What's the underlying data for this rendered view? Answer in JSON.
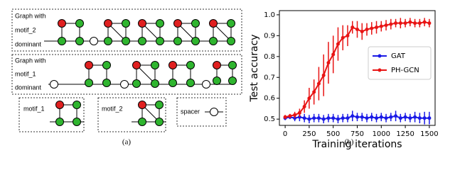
{
  "diagram": {
    "graph_motif_2": {
      "lines": [
        "Graph with",
        "motif_2",
        "dominant"
      ]
    },
    "graph_motif_1": {
      "lines": [
        "Graph with",
        "motif_1",
        "dominant"
      ]
    },
    "legend_boxes": [
      "motif_1",
      "motif_2",
      "spacer"
    ],
    "caption": "(a)"
  },
  "chart_caption": "(b)",
  "chart_data": {
    "type": "line",
    "xlabel": "Training iterations",
    "ylabel": "Test accuracy",
    "x": [
      0,
      50,
      100,
      150,
      200,
      250,
      300,
      350,
      400,
      450,
      500,
      550,
      600,
      650,
      700,
      750,
      800,
      850,
      900,
      950,
      1000,
      1050,
      1100,
      1150,
      1200,
      1250,
      1300,
      1350,
      1400,
      1450,
      1500
    ],
    "series": [
      {
        "name": "GAT",
        "color": "#1a1ae6",
        "values": [
          0.505,
          0.51,
          0.505,
          0.51,
          0.505,
          0.5,
          0.505,
          0.505,
          0.5,
          0.505,
          0.505,
          0.5,
          0.505,
          0.505,
          0.515,
          0.51,
          0.51,
          0.505,
          0.51,
          0.505,
          0.51,
          0.505,
          0.51,
          0.515,
          0.505,
          0.51,
          0.505,
          0.51,
          0.505,
          0.505,
          0.505
        ],
        "errors": [
          0.01,
          0.01,
          0.015,
          0.02,
          0.02,
          0.02,
          0.02,
          0.02,
          0.02,
          0.02,
          0.02,
          0.02,
          0.02,
          0.02,
          0.025,
          0.02,
          0.02,
          0.02,
          0.02,
          0.02,
          0.02,
          0.02,
          0.02,
          0.025,
          0.02,
          0.02,
          0.02,
          0.025,
          0.025,
          0.03,
          0.03
        ]
      },
      {
        "name": "PH-GCN",
        "color": "#e81414",
        "values": [
          0.51,
          0.515,
          0.52,
          0.53,
          0.56,
          0.6,
          0.63,
          0.67,
          0.71,
          0.77,
          0.81,
          0.86,
          0.89,
          0.9,
          0.94,
          0.93,
          0.92,
          0.93,
          0.935,
          0.94,
          0.945,
          0.95,
          0.955,
          0.96,
          0.96,
          0.96,
          0.965,
          0.96,
          0.96,
          0.965,
          0.96
        ],
        "errors": [
          0.01,
          0.01,
          0.015,
          0.02,
          0.03,
          0.05,
          0.06,
          0.08,
          0.1,
          0.1,
          0.09,
          0.08,
          0.06,
          0.05,
          0.03,
          0.04,
          0.04,
          0.03,
          0.03,
          0.03,
          0.025,
          0.025,
          0.025,
          0.02,
          0.025,
          0.02,
          0.02,
          0.02,
          0.02,
          0.02,
          0.02
        ]
      }
    ],
    "xlim": [
      -60,
      1560
    ],
    "ylim": [
      0.47,
      1.02
    ],
    "xticks": [
      0,
      250,
      500,
      750,
      1000,
      1250,
      1500
    ],
    "yticks": [
      0.5,
      0.6,
      0.7,
      0.8,
      0.9,
      {
        "value": 1,
        "label": "1.0"
      }
    ],
    "legend": "center right"
  }
}
